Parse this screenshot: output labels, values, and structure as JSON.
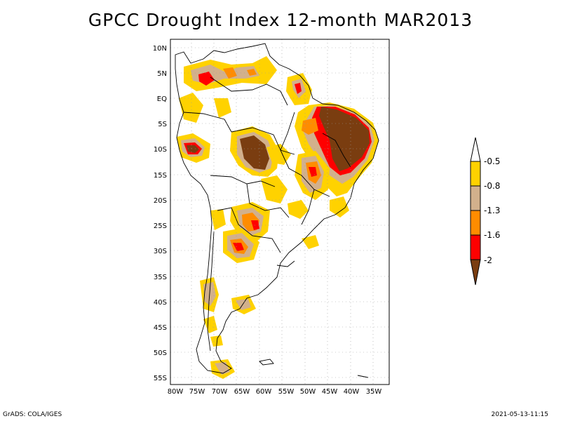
{
  "title": "GPCC Drought Index 12-month MAR2013",
  "footer": {
    "credit": "GrADS: COLA/IGES",
    "timestamp": "2021-05-13-11:15"
  },
  "axes": {
    "lat_labels": [
      "10N",
      "5N",
      "EQ",
      "5S",
      "10S",
      "15S",
      "20S",
      "25S",
      "30S",
      "35S",
      "40S",
      "45S",
      "50S",
      "55S"
    ],
    "lon_labels": [
      "80W",
      "75W",
      "70W",
      "65W",
      "60W",
      "55W",
      "50W",
      "45W",
      "40W",
      "35W"
    ]
  },
  "legend": {
    "levels": [
      "-0.5",
      "-0.8",
      "-1.3",
      "-1.6",
      "-2"
    ],
    "colors": [
      "#ffd200",
      "#d2b08c",
      "#ff8c00",
      "#ff0000",
      "#7a3d10"
    ]
  },
  "colors": {
    "background": "#ffffff",
    "land_outline": "#000000",
    "gridline": "#9a9a9a"
  }
}
